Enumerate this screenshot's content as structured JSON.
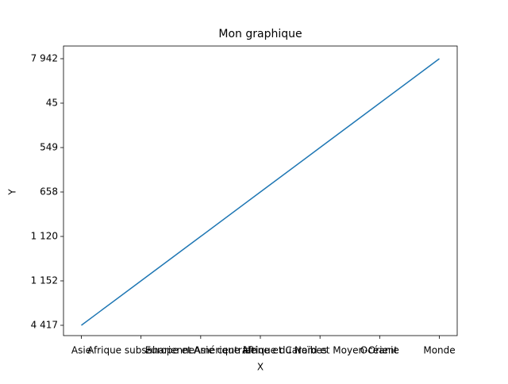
{
  "chart_data": {
    "type": "line",
    "title": "Mon graphique",
    "xlabel": "X",
    "ylabel": "Y",
    "categories": [
      "Asie",
      "Afrique subsaharienne",
      "Europe et Asie centrale",
      "Amérique latine et Caraïbes",
      "Afrique du Nord et Moyen-Orient",
      "Océanie",
      "Monde"
    ],
    "values": [
      "4 417",
      "1 152",
      "1 120",
      "658",
      "549",
      "45",
      "7 942"
    ],
    "color": "#1f77b4"
  }
}
